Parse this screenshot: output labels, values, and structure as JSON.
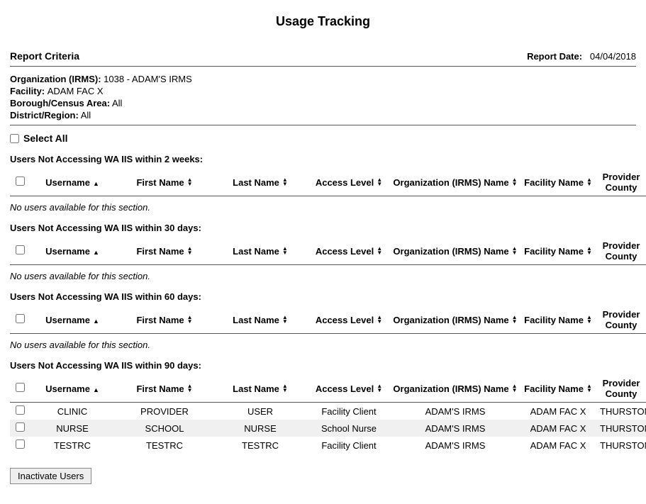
{
  "page_title": "Usage Tracking",
  "report_criteria_label": "Report Criteria",
  "report_date_label": "Report Date:",
  "report_date_value": "04/04/2018",
  "criteria": {
    "org_label": "Organization (IRMS):",
    "org_value": "1038 - ADAM'S IRMS",
    "facility_label": "Facility:",
    "facility_value": "ADAM FAC X",
    "borough_label": "Borough/Census Area:",
    "borough_value": "All",
    "district_label": "District/Region:",
    "district_value": "All"
  },
  "select_all_label": "Select All",
  "columns": {
    "username": "Username",
    "first_name": "First Name",
    "last_name": "Last Name",
    "access_level": "Access Level",
    "org_name": "Organization (IRMS) Name",
    "facility_name": "Facility Name",
    "provider_county": "Provider County"
  },
  "empty_message": "No users available for this section.",
  "sections": [
    {
      "title": "Users Not Accessing WA IIS within 2 weeks:",
      "rows": []
    },
    {
      "title": "Users Not Accessing WA IIS within 30 days:",
      "rows": []
    },
    {
      "title": "Users Not Accessing WA IIS within 60 days:",
      "rows": []
    },
    {
      "title": "Users Not Accessing WA IIS within 90 days:",
      "rows": [
        {
          "username": "CLINIC",
          "first_name": "PROVIDER",
          "last_name": "USER",
          "access_level": "Facility Client",
          "org_name": "ADAM'S IRMS",
          "facility_name": "ADAM FAC X",
          "provider_county": "THURSTON"
        },
        {
          "username": "NURSE",
          "first_name": "SCHOOL",
          "last_name": "NURSE",
          "access_level": "School Nurse",
          "org_name": "ADAM'S IRMS",
          "facility_name": "ADAM FAC X",
          "provider_county": "THURSTON"
        },
        {
          "username": "TESTRC",
          "first_name": "TESTRC",
          "last_name": "TESTRC",
          "access_level": "Facility Client",
          "org_name": "ADAM'S IRMS",
          "facility_name": "ADAM FAC X",
          "provider_county": "THURSTON"
        }
      ]
    }
  ],
  "inactivate_button": "Inactivate Users",
  "col_widths": {
    "checkbox": "28px",
    "username": "120px",
    "first_name": "140px",
    "last_name": "130px",
    "access_level": "120px",
    "org_name": "180px",
    "facility_name": "110px",
    "provider_county": "80px"
  }
}
